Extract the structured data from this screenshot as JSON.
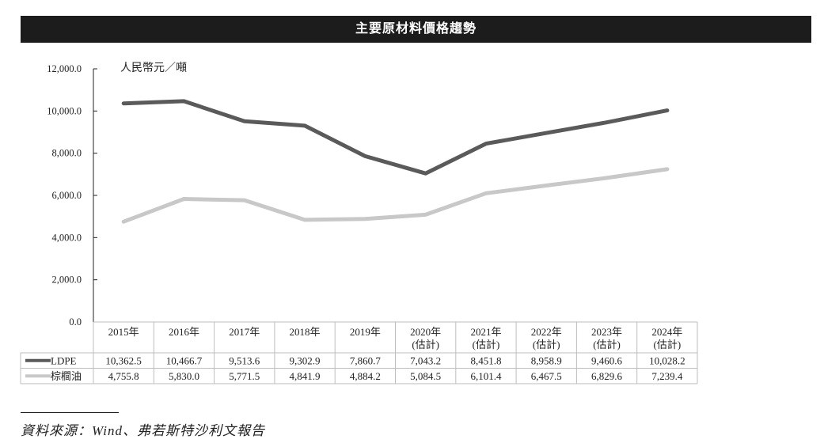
{
  "title": "主要原材料價格趨勢",
  "source": "資料來源：Wind、弗若斯特沙利文報告",
  "colors": {
    "ldpe": "#5a5a5a",
    "palm_oil": "#c8c8c8",
    "title_bg": "#1c1c1c"
  },
  "chart_data": {
    "type": "line",
    "title": "主要原材料價格趨勢",
    "unit_label": "人民幣元／噸",
    "ylim": [
      0,
      12000
    ],
    "y_ticks": [
      "0.0",
      "2,000.0",
      "4,000.0",
      "6,000.0",
      "8,000.0",
      "10,000.0",
      "12,000.0"
    ],
    "categories": [
      [
        "2015年"
      ],
      [
        "2016年"
      ],
      [
        "2017年"
      ],
      [
        "2018年"
      ],
      [
        "2019年"
      ],
      [
        "2020年",
        "(估計)"
      ],
      [
        "2021年",
        "(估計)"
      ],
      [
        "2022年",
        "(估計)"
      ],
      [
        "2023年",
        "(估計)"
      ],
      [
        "2024年",
        "(估計)"
      ]
    ],
    "series": [
      {
        "name": "LDPE",
        "values": [
          10362.5,
          10466.7,
          9513.6,
          9302.9,
          7860.7,
          7043.2,
          8451.8,
          8958.9,
          9460.6,
          10028.2
        ],
        "labels": [
          "10,362.5",
          "10,466.7",
          "9,513.6",
          "9,302.9",
          "7,860.7",
          "7,043.2",
          "8,451.8",
          "8,958.9",
          "9,460.6",
          "10,028.2"
        ]
      },
      {
        "name": "棕櫚油",
        "values": [
          4755.8,
          5830.0,
          5771.5,
          4841.9,
          4884.2,
          5084.5,
          6101.4,
          6467.5,
          6829.6,
          7239.4
        ],
        "labels": [
          "4,755.8",
          "5,830.0",
          "5,771.5",
          "4,841.9",
          "4,884.2",
          "5,084.5",
          "6,101.4",
          "6,467.5",
          "6,829.6",
          "7,239.4"
        ]
      }
    ],
    "grid": false,
    "legend": "table-below"
  }
}
